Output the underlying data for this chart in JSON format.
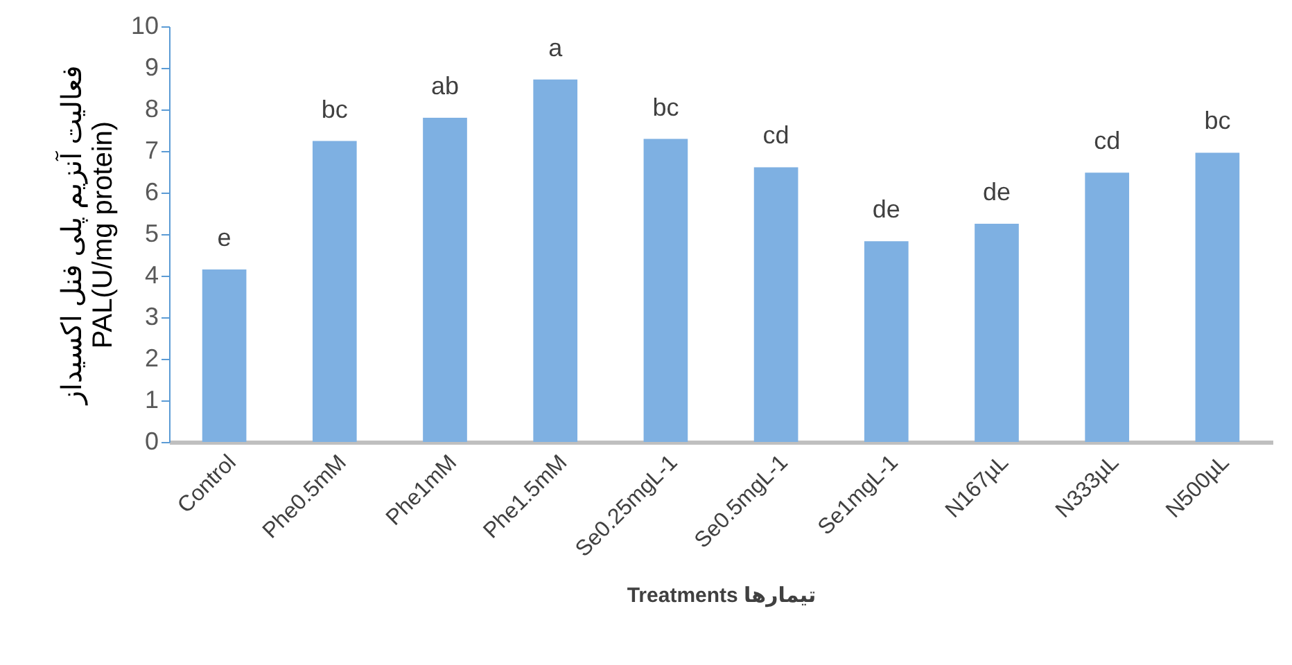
{
  "chart_data": {
    "type": "bar",
    "xlabel": "Treatments  تیمارها",
    "ylabel": "فعالیت آنزیم پلی فنل اکسیداز\nPAL(U/mg protein)",
    "categories": [
      "Control",
      "Phe0.5mM",
      "Phe1mM",
      "Phe1.5mM",
      "Se0.25mgL-1",
      "Se0.5mgL-1",
      "Se1mgL-1",
      "N167µL",
      "N333µL",
      "N500µL"
    ],
    "values": [
      4.15,
      7.24,
      7.8,
      8.72,
      7.29,
      6.61,
      4.83,
      5.25,
      6.48,
      6.96
    ],
    "color": "#7eb0e2",
    "ylim": [
      0,
      10
    ],
    "yticks": [
      0,
      1,
      2,
      3,
      4,
      5,
      6,
      7,
      8,
      9,
      10
    ],
    "grid": false,
    "annotations": [
      {
        "text": "e",
        "x": "Control",
        "y": 4.15
      },
      {
        "text": "bc",
        "x": "Phe0.5mM",
        "y": 7.24
      },
      {
        "text": "ab",
        "x": "Phe1mM",
        "y": 7.8
      },
      {
        "text": "a",
        "x": "Phe1.5mM",
        "y": 8.72
      },
      {
        "text": "bc",
        "x": "Se0.25mgL-1",
        "y": 7.29
      },
      {
        "text": "cd",
        "x": "Se0.5mgL-1",
        "y": 6.61
      },
      {
        "text": "de",
        "x": "Se1mgL-1",
        "y": 4.83
      },
      {
        "text": "de",
        "x": "N167µL",
        "y": 5.25
      },
      {
        "text": "cd",
        "x": "N333µL",
        "y": 6.48
      },
      {
        "text": "bc",
        "x": "N500µL",
        "y": 6.96
      }
    ]
  }
}
